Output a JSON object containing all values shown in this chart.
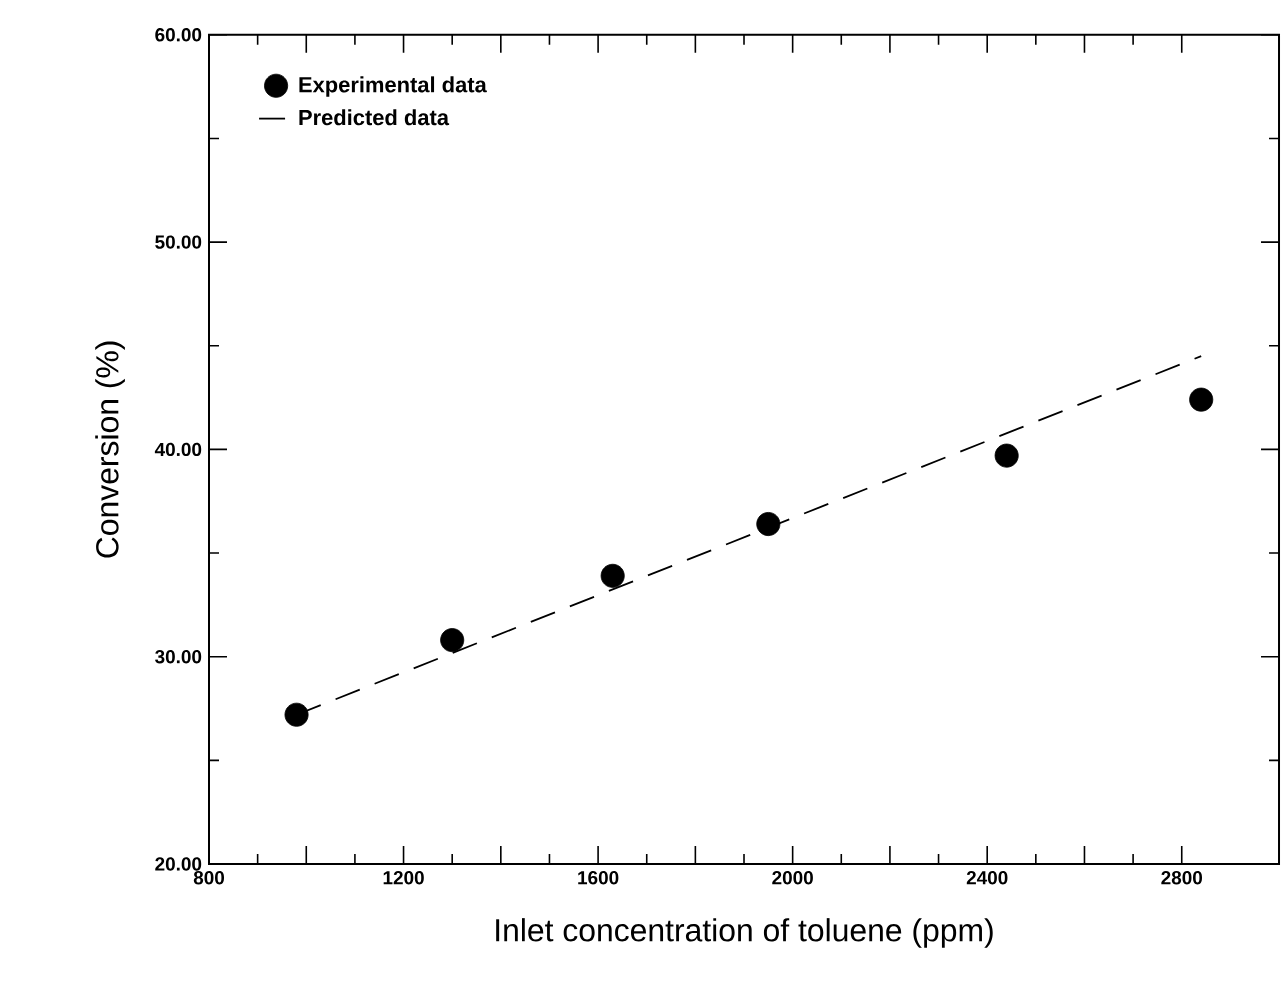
{
  "chart_data": {
    "type": "scatter",
    "xlabel": "Inlet concentration of toluene (ppm)",
    "ylabel": "Conversion (%)",
    "xlim": [
      800,
      3000
    ],
    "ylim": [
      20,
      60
    ],
    "xticks": [
      800,
      {
        "value": 1000,
        "label": null
      },
      1200,
      {
        "value": 1400,
        "label": null
      },
      1600,
      {
        "value": 1800,
        "label": null
      },
      2000,
      {
        "value": 2200,
        "label": null
      },
      2400,
      {
        "value": 2600,
        "label": null
      },
      2800
    ],
    "yticks": [
      {
        "value": 20,
        "label": "20.00"
      },
      {
        "value": 30,
        "label": "30.00"
      },
      {
        "value": 40,
        "label": "40.00"
      },
      {
        "value": 50,
        "label": "50.00"
      },
      {
        "value": 60,
        "label": "60.00"
      }
    ],
    "legend": "top left",
    "grid": false,
    "series": [
      {
        "name": "Experimental data",
        "color": "#000000",
        "marker": "circle",
        "x": [
          980,
          1300,
          1630,
          1950,
          2440,
          2840
        ],
        "values": [
          27.2,
          30.8,
          33.9,
          36.4,
          39.7,
          42.4
        ]
      },
      {
        "name": "Predicted data",
        "type": "line",
        "color": "#000000",
        "marker": "none",
        "line_style": "dashed",
        "x": [
          980,
          2840
        ],
        "values": [
          27.2,
          44.5
        ]
      }
    ]
  }
}
